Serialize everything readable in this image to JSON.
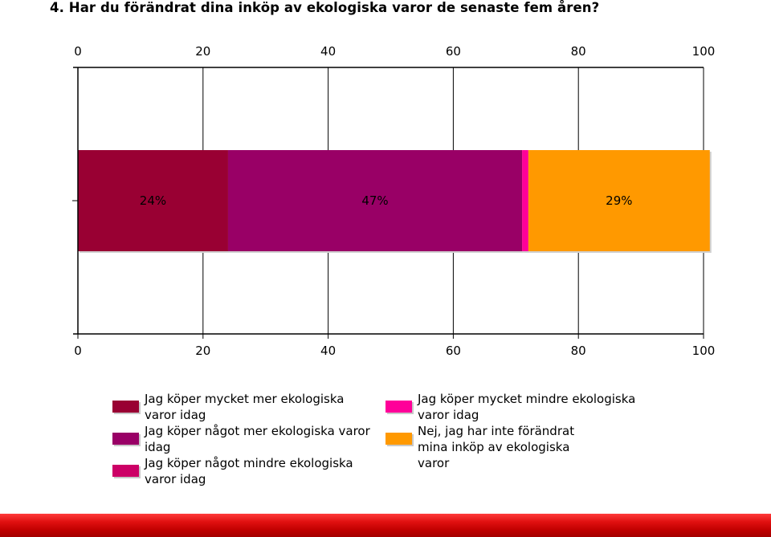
{
  "title": "4. Har du förändrat dina inköp av ekologiska varor de senaste fem åren?",
  "chart_data": {
    "type": "bar",
    "orientation": "horizontal",
    "stacked": true,
    "title": "4. Har du förändrat dina inköp av ekologiska varor de senaste fem åren?",
    "xlim": [
      0,
      100
    ],
    "ticks": [
      0,
      20,
      40,
      60,
      80,
      100
    ],
    "grid": true,
    "legend_position": "bottom",
    "series": [
      {
        "name": "Jag köper mycket mer ekologiska varor idag",
        "value": 24,
        "label": "24%",
        "color": "#990033"
      },
      {
        "name": "Jag köper något mer ekologiska varor idag",
        "value": 47,
        "label": "47%",
        "color": "#990066"
      },
      {
        "name": "Jag köper något mindre ekologiska varor idag",
        "value": 0,
        "label": "",
        "color": "#cc0066"
      },
      {
        "name": "Jag köper mycket mindre ekologiska varor idag",
        "value": 1,
        "label": "",
        "color": "#ff0099"
      },
      {
        "name": "Nej, jag har inte förändrat mina inköp av ekologiska varor",
        "value": 29,
        "label": "29%",
        "color": "#ff9900"
      }
    ]
  },
  "legend_order": [
    0,
    1,
    2,
    3,
    4
  ]
}
